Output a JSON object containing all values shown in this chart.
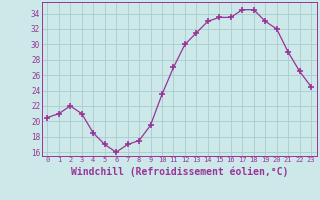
{
  "x": [
    0,
    1,
    2,
    3,
    4,
    5,
    6,
    7,
    8,
    9,
    10,
    11,
    12,
    13,
    14,
    15,
    16,
    17,
    18,
    19,
    20,
    21,
    22,
    23
  ],
  "y": [
    20.5,
    21.0,
    22.0,
    21.0,
    18.5,
    17.0,
    16.0,
    17.0,
    17.5,
    19.5,
    23.5,
    27.0,
    30.0,
    31.5,
    33.0,
    33.5,
    33.5,
    34.5,
    34.5,
    33.0,
    32.0,
    29.0,
    26.5,
    24.5
  ],
  "line_color": "#993399",
  "marker": "+",
  "marker_size": 4,
  "bg_color": "#cce8e8",
  "grid_color": "#aacccc",
  "xlabel": "Windchill (Refroidissement éolien,°C)",
  "xlabel_fontsize": 7,
  "tick_color": "#993399",
  "label_color": "#993399",
  "yticks": [
    16,
    18,
    20,
    22,
    24,
    26,
    28,
    30,
    32,
    34
  ],
  "xticks": [
    0,
    1,
    2,
    3,
    4,
    5,
    6,
    7,
    8,
    9,
    10,
    11,
    12,
    13,
    14,
    15,
    16,
    17,
    18,
    19,
    20,
    21,
    22,
    23
  ],
  "ylim": [
    15.5,
    35.5
  ],
  "xlim": [
    -0.5,
    23.5
  ]
}
